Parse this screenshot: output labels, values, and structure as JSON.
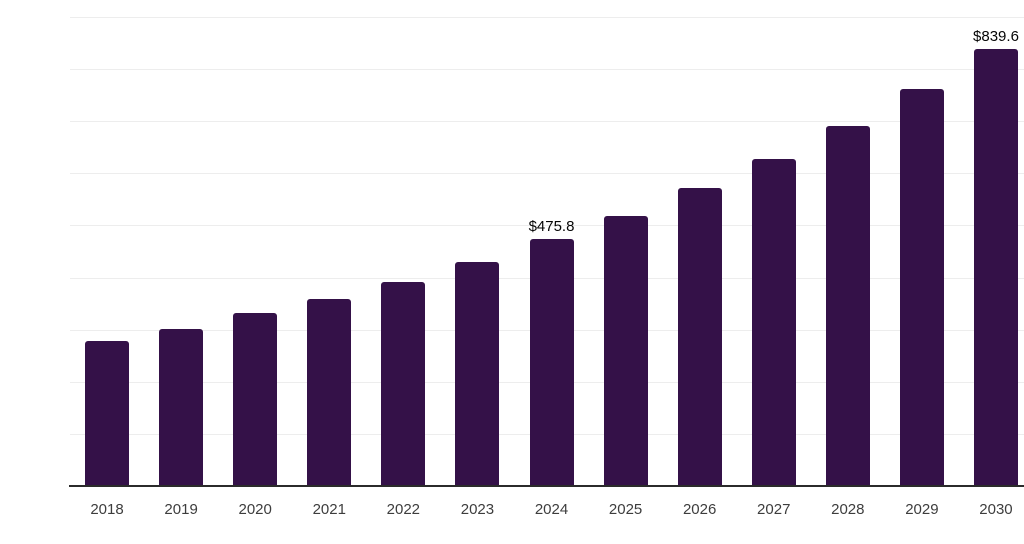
{
  "chart_data": {
    "type": "bar",
    "title": "",
    "xlabel": "",
    "ylabel": "",
    "categories": [
      "2018",
      "2019",
      "2020",
      "2021",
      "2022",
      "2023",
      "2024",
      "2025",
      "2026",
      "2027",
      "2028",
      "2029",
      "2030"
    ],
    "values": [
      280,
      304,
      333,
      360,
      394,
      432,
      475.8,
      521,
      574,
      630,
      693,
      763,
      839.6
    ],
    "data_labels": [
      "",
      "",
      "",
      "",
      "",
      "",
      "$475.8",
      "",
      "",
      "",
      "",
      "",
      "$839.6"
    ],
    "ylim": [
      0,
      900
    ],
    "gridline_step": 100,
    "grid": "horizontal-only",
    "legend": "none",
    "y_tick_labels_shown": false
  },
  "colors": {
    "background": "#ffffff",
    "bar": "#341148",
    "gridline": "#ededed",
    "axis": "#2b2b2b",
    "tick_label": "#3d3d3d",
    "value_label": "#050505"
  }
}
